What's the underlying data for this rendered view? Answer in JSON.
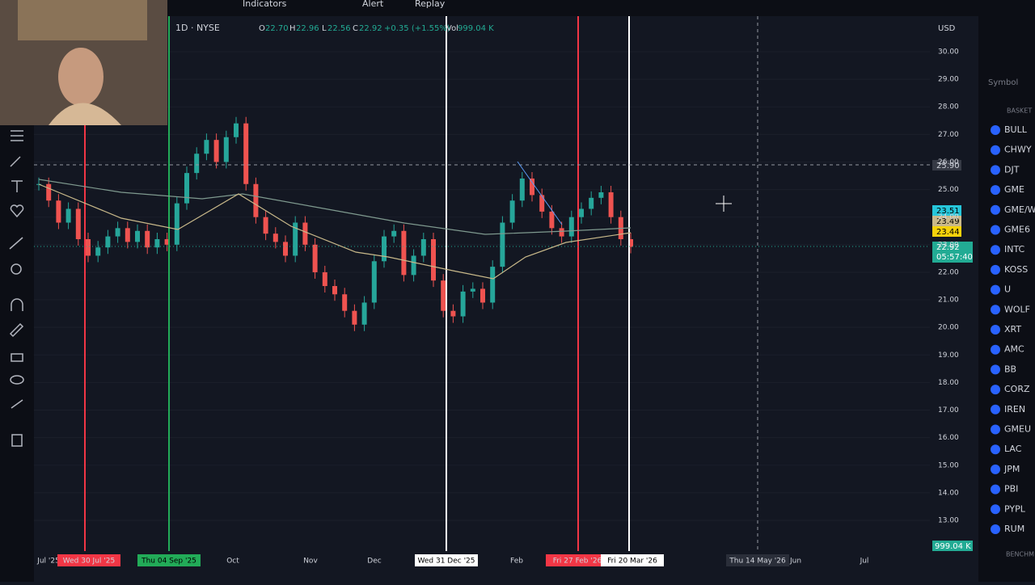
{
  "toolbar": {
    "indicators": "Indicators",
    "alert": "Alert",
    "replay": "Replay"
  },
  "legend": {
    "symbol": "1D · NYSE",
    "open_label": "O",
    "open": "22.70",
    "high_label": "H",
    "high": "22.96",
    "low_label": "L",
    "low": "22.56",
    "close_label": "C",
    "close": "22.92",
    "change": "+0.35 (+1.55%)",
    "vol_label": "Vol",
    "vol": "999.04 K"
  },
  "currency": "USD",
  "price_axis": [
    {
      "value": 30,
      "label": "30.00"
    },
    {
      "value": 29,
      "label": "29.00"
    },
    {
      "value": 28,
      "label": "28.00"
    },
    {
      "value": 27,
      "label": "27.00"
    },
    {
      "value": 26,
      "label": "26.00"
    },
    {
      "value": 25,
      "label": "25.00"
    },
    {
      "value": 24,
      "label": "24.00"
    },
    {
      "value": 23,
      "label": "23.00"
    },
    {
      "value": 22,
      "label": "22.00"
    },
    {
      "value": 21,
      "label": "21.00"
    },
    {
      "value": 20,
      "label": "20.00"
    },
    {
      "value": 19,
      "label": "19.00"
    },
    {
      "value": 18,
      "label": "18.00"
    },
    {
      "value": 17,
      "label": "17.00"
    },
    {
      "value": 16,
      "label": "16.00"
    },
    {
      "value": 15,
      "label": "15.00"
    },
    {
      "value": 14,
      "label": "14.00"
    },
    {
      "value": 13,
      "label": "13.00"
    }
  ],
  "price_badges": {
    "crosshair": "25.90",
    "ma1": "23.51",
    "ma2": "23.49",
    "ma3": "23.44",
    "last": "22.92",
    "countdown": "05:57:40",
    "volume": "999.04 K"
  },
  "time_axis": [
    "Jul '25",
    "Wed 30 Jul '25",
    "Thu 04 Sep '25",
    "Oct",
    "Nov",
    "Dec",
    "Wed 31 Dec '25",
    "Feb",
    "Fri 27 Feb '26",
    "Fri 20 Mar '26",
    "Thu 14 May '26",
    "Jun",
    "Jul"
  ],
  "closes": [
    25.2,
    24.6,
    23.8,
    24.3,
    23.2,
    22.6,
    22.9,
    23.3,
    23.6,
    23.1,
    23.5,
    22.9,
    23.2,
    23.0,
    24.5,
    25.6,
    26.3,
    26.8,
    26.0,
    26.9,
    27.4,
    25.2,
    24.0,
    23.4,
    23.1,
    22.6,
    23.8,
    23.0,
    22.0,
    21.5,
    21.2,
    20.6,
    20.1,
    20.9,
    22.4,
    23.3,
    23.5,
    21.9,
    22.6,
    23.2,
    21.7,
    20.6,
    20.4,
    21.3,
    21.4,
    20.9,
    22.2,
    23.8,
    24.6,
    25.4,
    24.8,
    24.2,
    23.6,
    23.3,
    24.0,
    24.3,
    24.7,
    24.9,
    24.0,
    23.2,
    22.92
  ],
  "watchlist": {
    "header": "Symbol",
    "section": "BASKET",
    "symbols": [
      "BULL",
      "CHWY",
      "DJT",
      "GME",
      "GME/W",
      "GME6",
      "INTC",
      "KOSS",
      "U",
      "WOLF",
      "XRT",
      "AMC",
      "BB",
      "CORZ",
      "IREN",
      "GMEU",
      "LAC",
      "JPM",
      "PBI",
      "PYPL",
      "RUM"
    ],
    "footer": "BENCHM"
  }
}
